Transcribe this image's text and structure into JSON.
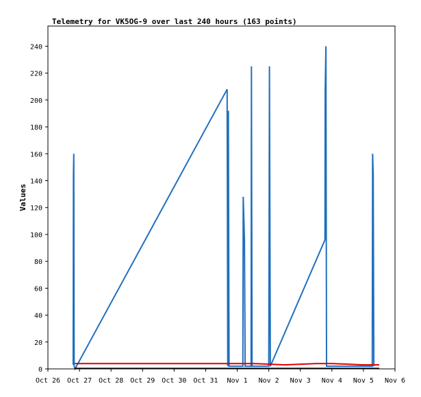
{
  "chart_data": {
    "type": "line",
    "title": "Telemetry for VK5OG-9 over last 240 hours (163 points)",
    "xlabel": "",
    "ylabel": "Values",
    "ylim": [
      0,
      255
    ],
    "xlim": [
      "Oct 26",
      "Nov 6"
    ],
    "grid": false,
    "x_tick_labels": [
      "Oct 26",
      "Oct 27",
      "Oct 28",
      "Oct 29",
      "Oct 30",
      "Oct 31",
      "Nov 1",
      "Nov 2",
      "Nov 3",
      "Nov 4",
      "Nov 5",
      "Nov 6"
    ],
    "y_ticks": [
      0,
      20,
      40,
      60,
      80,
      100,
      120,
      140,
      160,
      180,
      200,
      220,
      240
    ],
    "colors": {
      "series_blue": "#1f6fbf",
      "series_red": "#dd0000",
      "series_black": "#000000"
    },
    "series": [
      {
        "color": "#1f6fbf",
        "points": [
          [
            0.8,
            3
          ],
          [
            0.81,
            145
          ],
          [
            0.82,
            160
          ],
          [
            0.83,
            2
          ],
          [
            0.86,
            0
          ],
          [
            5.68,
            208
          ],
          [
            5.7,
            2
          ],
          [
            5.72,
            192
          ],
          [
            5.74,
            2
          ],
          [
            6.18,
            2
          ],
          [
            6.19,
            128
          ],
          [
            6.21,
            112
          ],
          [
            6.23,
            96
          ],
          [
            6.25,
            2
          ],
          [
            6.44,
            2
          ],
          [
            6.45,
            225
          ],
          [
            6.47,
            2
          ],
          [
            7.0,
            2
          ],
          [
            7.01,
            96
          ],
          [
            7.02,
            225
          ],
          [
            7.05,
            2
          ],
          [
            8.78,
            96
          ],
          [
            8.79,
            208
          ],
          [
            8.81,
            240
          ],
          [
            8.83,
            2
          ],
          [
            10.28,
            2
          ],
          [
            10.29,
            160
          ],
          [
            10.31,
            145
          ],
          [
            10.33,
            2
          ]
        ]
      },
      {
        "color": "#dd0000",
        "points": [
          [
            0.85,
            4
          ],
          [
            5.9,
            4
          ],
          [
            6.5,
            4
          ],
          [
            7.0,
            3.5
          ],
          [
            7.5,
            3
          ],
          [
            8.5,
            4
          ],
          [
            9.0,
            4
          ],
          [
            9.5,
            3.5
          ],
          [
            10.0,
            3
          ],
          [
            10.5,
            3
          ]
        ]
      },
      {
        "color": "#000000",
        "points": [
          [
            0.85,
            0.3
          ],
          [
            10.5,
            0.3
          ]
        ]
      }
    ]
  }
}
